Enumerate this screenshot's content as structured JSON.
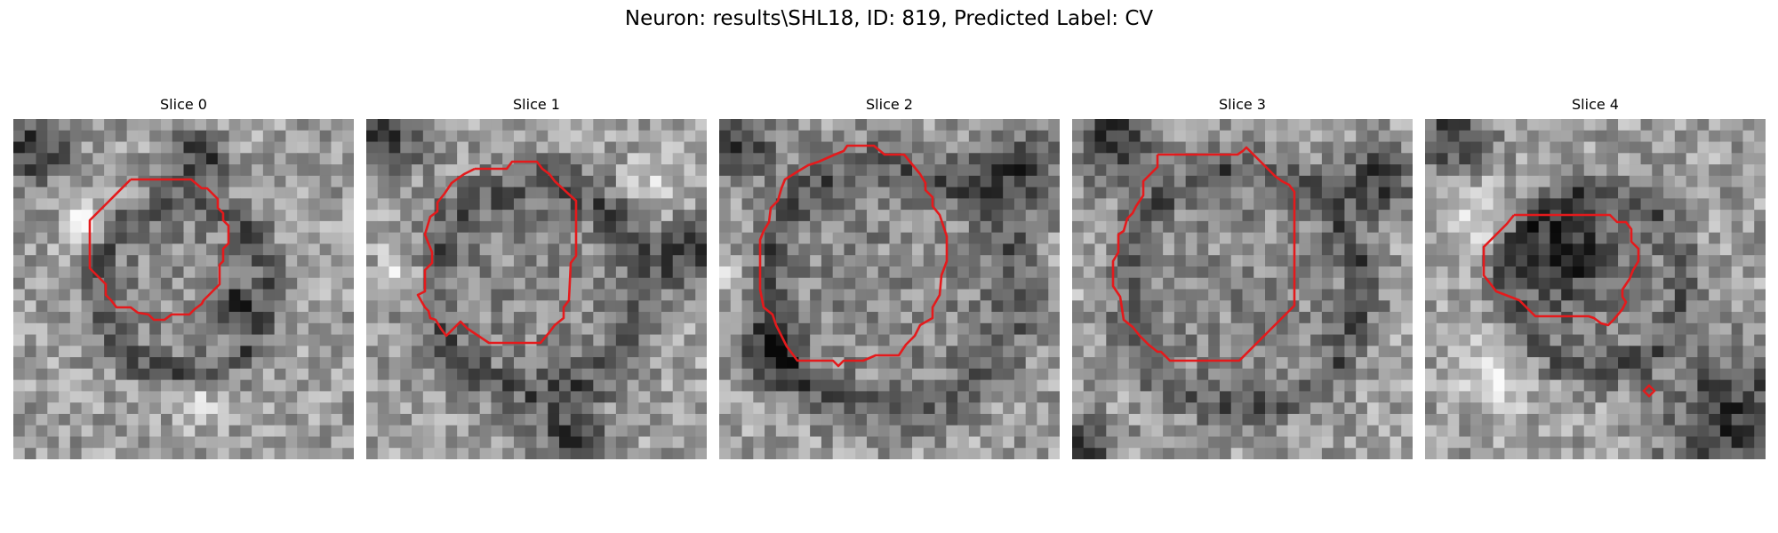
{
  "figure": {
    "title": "Neuron: results\\SHL18, ID: 819, Predicted Label: CV"
  },
  "slices": [
    {
      "title": "Slice 0"
    },
    {
      "title": "Slice 1"
    },
    {
      "title": "Slice 2"
    },
    {
      "title": "Slice 3"
    },
    {
      "title": "Slice 4"
    }
  ],
  "colors": {
    "contour": "#e41a1c",
    "background": "#ffffff"
  }
}
